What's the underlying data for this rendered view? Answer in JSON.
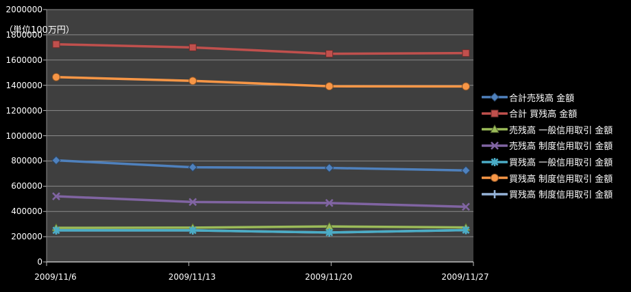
{
  "chart_data": {
    "type": "line",
    "title": "",
    "unit_label": "（単位100万円）",
    "categories": [
      "2009/11/6",
      "2009/11/13",
      "2009/11/20",
      "2009/11/27"
    ],
    "y_axis": {
      "min": 0,
      "max": 2000000,
      "step": 200000,
      "tick_labels": [
        "0",
        "200000",
        "400000",
        "600000",
        "800000",
        "1000000",
        "1200000",
        "1400000",
        "1600000",
        "1800000",
        "2000000"
      ]
    },
    "grid": true,
    "legend_position": "right",
    "background": {
      "chart": "#000000",
      "plot": "#3F3F3F"
    },
    "gridline_color": "#8C8C8C",
    "axis_color": "#BEBEBE",
    "text_color": "#FFFFFF",
    "series": [
      {
        "name": "合計売残高 金額",
        "color": "#4F81BD",
        "marker": "diamond",
        "values": [
          805000,
          750000,
          745000,
          725000
        ]
      },
      {
        "name": "合計 買残高 金額",
        "color": "#C0504D",
        "marker": "square",
        "values": [
          1725000,
          1700000,
          1650000,
          1655000
        ]
      },
      {
        "name": "売残高 一般信用取引 金額",
        "color": "#9BBB59",
        "marker": "triangle",
        "values": [
          270000,
          272000,
          281000,
          273000
        ]
      },
      {
        "name": "売残高 制度信用取引 金額",
        "color": "#8064A2",
        "marker": "x",
        "values": [
          520000,
          475000,
          467000,
          437000
        ]
      },
      {
        "name": "買残高 一般信用取引 金額",
        "color": "#4BACC6",
        "marker": "asterisk",
        "values": [
          250000,
          250000,
          233000,
          252000
        ]
      },
      {
        "name": "買残高 制度信用取引 金額",
        "color": "#F79646",
        "marker": "circle",
        "values": [
          1465000,
          1435000,
          1392000,
          1391000
        ]
      },
      {
        "name": "買残高 制度信用取引 金額",
        "color": "#95B3D7",
        "marker": "plus",
        "values": [
          250000,
          250000,
          233000,
          252000
        ]
      }
    ]
  }
}
